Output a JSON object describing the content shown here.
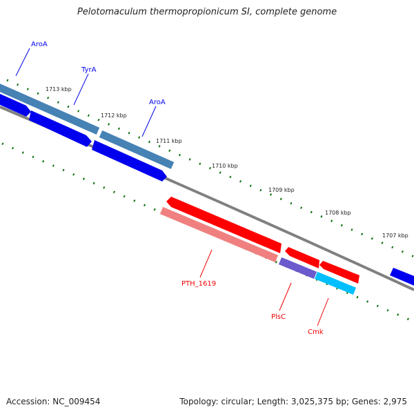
{
  "title": "Pelotomaculum thermopropionicum SI, complete genome",
  "footer": {
    "accession": "Accession: NC_009454",
    "summary": "Topology: circular; Length: 3,025,375 bp; Genes: 2,975"
  },
  "ticks": [
    "1713 kbp",
    "1712 kbp",
    "1711 kbp",
    "1710 kbp",
    "1709 kbp",
    "1708 kbp",
    "1707 kbp"
  ],
  "gene_labels": [
    "AroA",
    "TyrA",
    "AroA",
    "PTH_1619",
    "PlsC",
    "Cmk"
  ],
  "colors": {
    "forward_cds": "#0000ee",
    "forward_feature": "#4682b4",
    "reverse_cds": "#ff0000",
    "reverse_feature": "#f08080",
    "plsc": "#6a5acd",
    "cmk": "#00bfff",
    "backbone": "#808080",
    "tick": "#107010",
    "forward_label": "#0000ee",
    "reverse_label": "#ee0000"
  }
}
